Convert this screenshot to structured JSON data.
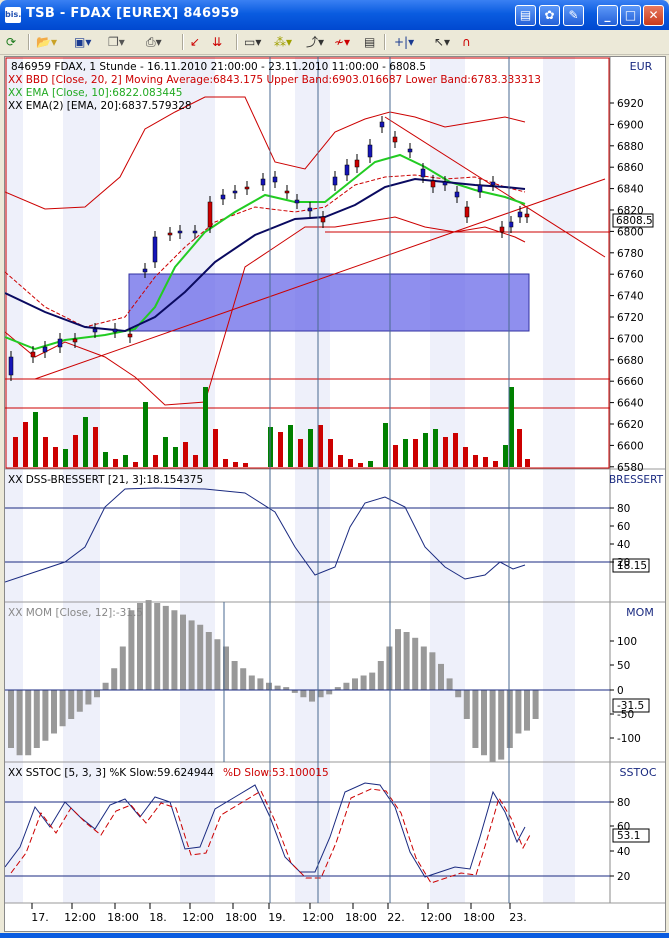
{
  "window": {
    "title": "TSB - FDAX [EUREX] 846959",
    "app_icon": "bis.",
    "min_label": "_",
    "max_label": "□",
    "close_label": "✕",
    "doc_buttons": [
      "chart-window-icon",
      "color-icon",
      "edit-icon"
    ]
  },
  "toolbar": {
    "icons": [
      "refresh-icon",
      "open-icon",
      "save-icon",
      "copy-icon",
      "print-icon",
      "chart-style-icon",
      "chart-type-icon",
      "indicator-icon",
      "study-icon",
      "draw-icon",
      "settings-icon",
      "cursor-icon",
      "arrow-icon",
      "magnet-icon"
    ]
  },
  "price_panel": {
    "axis_label": "EUR",
    "header": "846959  FDAX, 1 Stunde - 16.11.2010 21:00:00 - 23.11.2010 11:00:00 - 6808.5",
    "bbd_label": "XX BBD [Close, 20, 2] Moving Average:6843.175 Upper Band:6903.016687 Lower Band:6783.333313",
    "ema10_label": "XX EMA [Close, 10]:6822.083445",
    "ema20_label": "XX EMA(2) [EMA, 20]:6837.579328",
    "last_price": "6808.5",
    "ticks": [
      "6920",
      "6900",
      "6880",
      "6860",
      "6840",
      "6820",
      "6800",
      "6780",
      "6760",
      "6740",
      "6720",
      "6700",
      "6680",
      "6660",
      "6640",
      "6620",
      "6600",
      "6580"
    ],
    "colors": {
      "bull": "#008000",
      "bear": "#cc0000",
      "candle_up": "#1515b8",
      "ema10": "#22cc22",
      "ema20": "#0a0a60",
      "band": "#cc0000",
      "zone": "#6666ee"
    }
  },
  "dss_panel": {
    "axis_label": "BRESSERT",
    "label": "XX DSS-BRESSERT [21, 3]:18.154375",
    "ticks": [
      "80",
      "60",
      "40",
      "20"
    ],
    "value": "18.15"
  },
  "mom_panel": {
    "axis_label": "MOM",
    "label": "XX MOM [Close, 12]:-31.5",
    "ticks": [
      "100",
      "50",
      "0",
      "-50",
      "-100"
    ],
    "value": "-31.5"
  },
  "sstoc_panel": {
    "axis_label": "SSTOC",
    "label_main": "XX SSTOC [5, 3, 3] %K Slow:59.624944",
    "label_d": "%D Slow:53.100015",
    "ticks": [
      "80",
      "60",
      "40",
      "20"
    ],
    "value": "53.1"
  },
  "time_axis": {
    "labels": [
      "17.",
      "12:00",
      "18:00",
      "18.",
      "12:00",
      "18:00",
      "19.",
      "12:00",
      "18:00",
      "22.",
      "12:00",
      "18:00",
      "23."
    ]
  }
}
